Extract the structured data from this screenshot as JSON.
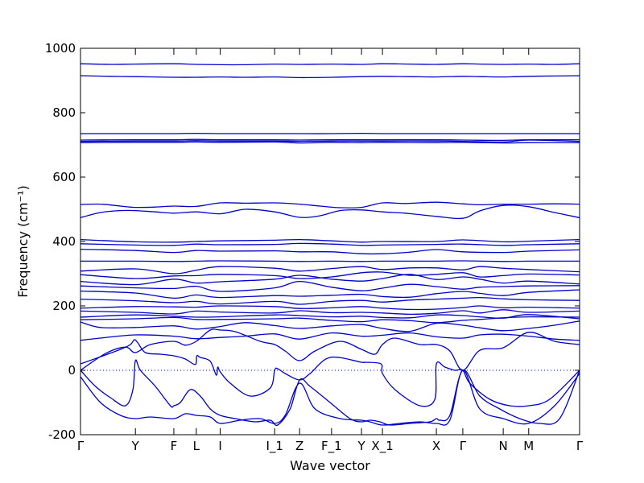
{
  "chart_data": {
    "type": "line",
    "xlabel": "Wave vector",
    "ylabel": "Frequency (cm⁻¹)",
    "ylim": [
      -200,
      1000
    ],
    "yticks": [
      -200,
      0,
      200,
      400,
      600,
      800,
      1000
    ],
    "xlim": [
      0,
      100
    ],
    "high_symmetry_points": [
      {
        "label": "Γ",
        "x": 0
      },
      {
        "label": "Y",
        "x": 11
      },
      {
        "label": "F",
        "x": 18.7
      },
      {
        "label": "L",
        "x": 23.2
      },
      {
        "label": "I",
        "x": 28
      },
      {
        "label": "I_1",
        "x": 38.9
      },
      {
        "label": "Z",
        "x": 43.9
      },
      {
        "label": "F_1",
        "x": 50.3
      },
      {
        "label": "Y",
        "x": 56.3
      },
      {
        "label": "X_1",
        "x": 60.5
      },
      {
        "label": "X",
        "x": 71.3
      },
      {
        "label": "Γ",
        "x": 76.6
      },
      {
        "label": "N",
        "x": 84.7
      },
      {
        "label": "M",
        "x": 89.8
      },
      {
        "label": "Γ",
        "x": 100
      }
    ],
    "zero_line": 0,
    "series": [
      {
        "x": [
          0,
          6,
          11,
          18.7,
          23.2,
          28,
          33,
          38.9,
          43.9,
          50.3,
          56.3,
          60.5,
          66,
          71.3,
          76.6,
          80,
          84.7,
          89.8,
          95,
          100
        ],
        "y": [
          952,
          950,
          951,
          952,
          950,
          949,
          949,
          951,
          950,
          951,
          950,
          952,
          951,
          950,
          952,
          951,
          950,
          951,
          950,
          952
        ]
      },
      {
        "x": [
          0,
          6,
          11,
          18.7,
          23.2,
          28,
          33,
          38.9,
          43.9,
          50.3,
          56.3,
          60.5,
          66,
          71.3,
          76.6,
          80,
          84.7,
          89.8,
          95,
          100
        ],
        "y": [
          915,
          913,
          912,
          910,
          910,
          911,
          910,
          911,
          909,
          910,
          912,
          913,
          912,
          911,
          913,
          912,
          911,
          913,
          914,
          915
        ]
      },
      {
        "x": [
          0,
          11,
          18.7,
          23.2,
          28,
          38.9,
          43.9,
          50.3,
          56.3,
          60.5,
          71.3,
          76.6,
          84.7,
          89.8,
          100
        ],
        "y": [
          735,
          735,
          735,
          736,
          735,
          735,
          735,
          735,
          736,
          735,
          735,
          735,
          735,
          735,
          735
        ]
      },
      {
        "x": [
          0,
          11,
          18.7,
          23.2,
          28,
          38.9,
          43.9,
          50.3,
          56.3,
          60.5,
          71.3,
          76.6,
          84.7,
          89.8,
          100
        ],
        "y": [
          715,
          716,
          716,
          717,
          716,
          716,
          715,
          716,
          716,
          716,
          716,
          715,
          714,
          716,
          716
        ]
      },
      {
        "x": [
          0,
          11,
          18.7,
          23.2,
          28,
          38.9,
          43.9,
          50.3,
          56.3,
          60.5,
          71.3,
          76.6,
          84.7,
          89.8,
          100
        ],
        "y": [
          711,
          712,
          712,
          713,
          712,
          712,
          711,
          712,
          712,
          712,
          712,
          711,
          709,
          715,
          711
        ]
      },
      {
        "x": [
          0,
          11,
          18.7,
          23.2,
          28,
          38.9,
          43.9,
          50.3,
          56.3,
          60.5,
          71.3,
          76.6,
          84.7,
          89.8,
          100
        ],
        "y": [
          707,
          708,
          708,
          709,
          708,
          709,
          706,
          708,
          707,
          708,
          707,
          708,
          706,
          707,
          707
        ]
      },
      {
        "x": [
          0,
          4,
          8,
          11,
          15,
          18.7,
          23.2,
          28,
          33,
          38.9,
          43.9,
          48,
          52,
          56.3,
          60.5,
          65,
          71.3,
          76.6,
          80,
          84.7,
          89.8,
          95,
          100
        ],
        "y": [
          515,
          516,
          510,
          506,
          507,
          510,
          509,
          520,
          519,
          520,
          516,
          510,
          505,
          506,
          520,
          518,
          522,
          517,
          514,
          516,
          516,
          517,
          516
        ]
      },
      {
        "x": [
          0,
          4,
          8,
          11,
          15,
          18.7,
          23.2,
          28,
          33,
          38.9,
          43.9,
          48,
          52,
          56.3,
          60.5,
          65,
          71.3,
          76.6,
          80,
          84.7,
          89.8,
          95,
          100
        ],
        "y": [
          474,
          490,
          496,
          496,
          492,
          488,
          492,
          486,
          500,
          492,
          475,
          480,
          496,
          498,
          492,
          488,
          478,
          472,
          495,
          512,
          508,
          490,
          474
        ]
      },
      {
        "x": [
          0,
          11,
          18.7,
          23.2,
          28,
          38.9,
          43.9,
          50.3,
          56.3,
          60.5,
          71.3,
          76.6,
          84.7,
          89.8,
          100
        ],
        "y": [
          406,
          399,
          398,
          400,
          402,
          404,
          406,
          402,
          398,
          400,
          400,
          405,
          399,
          401,
          406
        ]
      },
      {
        "x": [
          0,
          11,
          18.7,
          23.2,
          28,
          38.9,
          43.9,
          50.3,
          56.3,
          60.5,
          71.3,
          76.6,
          84.7,
          89.8,
          100
        ],
        "y": [
          393,
          389,
          388,
          392,
          390,
          391,
          394,
          392,
          388,
          389,
          391,
          392,
          388,
          390,
          393
        ]
      },
      {
        "x": [
          0,
          11,
          18.7,
          23.2,
          28,
          38.9,
          43.9,
          50.3,
          56.3,
          60.5,
          66,
          71.3,
          76.6,
          84.7,
          89.8,
          100
        ],
        "y": [
          376,
          372,
          366,
          372,
          370,
          371,
          368,
          368,
          362,
          362,
          367,
          375,
          368,
          366,
          370,
          374
        ]
      },
      {
        "x": [
          0,
          11,
          18.7,
          23.2,
          28,
          38.9,
          43.9,
          50.3,
          56.3,
          60.5,
          71.3,
          76.6,
          84.7,
          89.8,
          100
        ],
        "y": [
          339,
          339,
          338,
          339,
          340,
          339,
          338,
          339,
          338,
          339,
          339,
          340,
          338,
          339,
          339
        ]
      },
      {
        "x": [
          0,
          11,
          18.7,
          23.2,
          28,
          38.9,
          43.9,
          50.3,
          56.3,
          60.5,
          66,
          71.3,
          76.6,
          80,
          84.7,
          89.8,
          100
        ],
        "y": [
          308,
          315,
          300,
          311,
          322,
          317,
          308,
          316,
          322,
          313,
          318,
          318,
          312,
          322,
          317,
          313,
          306
        ]
      },
      {
        "x": [
          0,
          11,
          18.7,
          23.2,
          28,
          38.9,
          43.9,
          50.3,
          56.3,
          60.5,
          66,
          71.3,
          76.6,
          80,
          84.7,
          89.8,
          100
        ],
        "y": [
          297,
          285,
          293,
          294,
          298,
          294,
          285,
          290,
          303,
          305,
          295,
          298,
          303,
          290,
          294,
          299,
          296
        ]
      },
      {
        "x": [
          0,
          11,
          18.7,
          23.2,
          28,
          38.9,
          43.9,
          50.3,
          56.3,
          60.5,
          66,
          71.3,
          76.6,
          80,
          84.7,
          89.8,
          100
        ],
        "y": [
          276,
          266,
          283,
          271,
          275,
          283,
          295,
          283,
          277,
          285,
          298,
          282,
          290,
          283,
          271,
          277,
          268
        ]
      },
      {
        "x": [
          0,
          11,
          18.7,
          23.2,
          28,
          38.9,
          43.9,
          50.3,
          56.3,
          60.5,
          66,
          71.3,
          76.6,
          80,
          84.7,
          89.8,
          100
        ],
        "y": [
          262,
          256,
          254,
          261,
          245,
          256,
          276,
          258,
          247,
          255,
          267,
          260,
          252,
          258,
          260,
          262,
          263
        ]
      },
      {
        "x": [
          0,
          11,
          18.7,
          23.2,
          28,
          38.9,
          43.9,
          50.3,
          56.3,
          60.5,
          66,
          71.3,
          76.6,
          80,
          84.7,
          89.8,
          100
        ],
        "y": [
          246,
          240,
          224,
          234,
          226,
          232,
          230,
          233,
          236,
          229,
          227,
          238,
          245,
          239,
          232,
          242,
          250
        ]
      },
      {
        "x": [
          0,
          11,
          18.7,
          23.2,
          28,
          38.9,
          43.9,
          50.3,
          56.3,
          60.5,
          66,
          71.3,
          76.6,
          80,
          84.7,
          89.8,
          100
        ],
        "y": [
          221,
          216,
          210,
          214,
          206,
          214,
          205,
          214,
          217,
          212,
          218,
          221,
          224,
          226,
          222,
          219,
          217
        ]
      },
      {
        "x": [
          0,
          11,
          18.7,
          23.2,
          28,
          38.9,
          43.9,
          50.3,
          56.3,
          60.5,
          66,
          71.3,
          76.6,
          80,
          84.7,
          89.8,
          100
        ],
        "y": [
          193,
          198,
          197,
          196,
          200,
          198,
          192,
          194,
          198,
          193,
          189,
          190,
          195,
          200,
          194,
          196,
          193
        ]
      },
      {
        "x": [
          0,
          11,
          18.7,
          23.2,
          28,
          38.9,
          43.9,
          50.3,
          56.3,
          60.5,
          66,
          71.3,
          76.6,
          80,
          84.7,
          89.8,
          100
        ],
        "y": [
          184,
          180,
          175,
          184,
          181,
          178,
          185,
          179,
          180,
          178,
          174,
          177,
          185,
          178,
          188,
          180,
          184
        ]
      },
      {
        "x": [
          0,
          11,
          18.7,
          23.2,
          28,
          38.9,
          43.9,
          50.3,
          56.3,
          60.5,
          66,
          71.3,
          76.6,
          80,
          84.7,
          89.8,
          100
        ],
        "y": [
          165,
          172,
          168,
          165,
          166,
          172,
          170,
          166,
          168,
          164,
          163,
          172,
          170,
          166,
          162,
          173,
          160
        ]
      },
      {
        "x": [
          0,
          11,
          18.7,
          23.2,
          28,
          38.9,
          43.9,
          50.3,
          56.3,
          60.5,
          66,
          71.3,
          76.6,
          80,
          84.7,
          89.8,
          100
        ],
        "y": [
          157,
          160,
          164,
          158,
          158,
          160,
          162,
          155,
          151,
          157,
          154,
          148,
          155,
          158,
          163,
          166,
          165
        ]
      },
      {
        "x": [
          0,
          4,
          11,
          18.7,
          23.2,
          28,
          33,
          38.9,
          43.9,
          50.3,
          56.3,
          60.5,
          66,
          71.3,
          76.6,
          80,
          84.7,
          89.8,
          95,
          100
        ],
        "y": [
          150,
          133,
          133,
          138,
          128,
          136,
          148,
          139,
          130,
          138,
          142,
          130,
          121,
          146,
          140,
          132,
          123,
          130,
          140,
          153
        ]
      },
      {
        "x": [
          0,
          4,
          11,
          18.7,
          23.2,
          28,
          33,
          38.9,
          43.9,
          50.3,
          56.3,
          60.5,
          66,
          71.3,
          76.6,
          80,
          84.7,
          89.8,
          95,
          100
        ],
        "y": [
          93,
          100,
          110,
          106,
          98,
          102,
          106,
          113,
          97,
          116,
          106,
          109,
          116,
          104,
          100,
          110,
          112,
          106,
          97,
          93
        ]
      },
      {
        "x": [
          0,
          5,
          9,
          11,
          14,
          18.7,
          21,
          23.2,
          26,
          28,
          31,
          36,
          38.9,
          41,
          43.9,
          47,
          52,
          56.3,
          59,
          60.5,
          63,
          68,
          71.3,
          74,
          76.6,
          80,
          84.7,
          89.8,
          95,
          100
        ],
        "y": [
          0,
          52,
          72,
          55,
          80,
          90,
          78,
          90,
          125,
          125,
          120,
          90,
          80,
          60,
          30,
          60,
          90,
          65,
          50,
          80,
          100,
          80,
          80,
          60,
          0,
          62,
          70,
          118,
          90,
          80
        ]
      },
      {
        "x": [
          0,
          4,
          8,
          10,
          10.8,
          11.5,
          13,
          16,
          18.7,
          21,
          23,
          23.3,
          24,
          26,
          27.2,
          27.5,
          28,
          30,
          34,
          38,
          38.9,
          39.5,
          41,
          43.9,
          46,
          50,
          56.3,
          57,
          60.2,
          60.5,
          63,
          68,
          71,
          71.3,
          73,
          75,
          76.6,
          78,
          82,
          86,
          89.8,
          94,
          100
        ],
        "y": [
          20,
          42,
          65,
          80,
          95,
          85,
          55,
          50,
          45,
          35,
          18,
          45,
          40,
          28,
          -15,
          10,
          -5,
          -40,
          -80,
          -55,
          0,
          5,
          -10,
          -30,
          -10,
          40,
          25,
          25,
          20,
          -10,
          -60,
          -110,
          -90,
          20,
          10,
          0,
          0,
          -40,
          -90,
          -110,
          -110,
          -90,
          0
        ]
      },
      {
        "x": [
          0,
          3,
          6,
          9,
          10.5,
          11,
          12,
          15,
          18,
          18.7,
          20,
          22,
          24,
          26,
          28,
          31,
          35,
          38,
          39.5,
          42,
          43.9,
          46,
          50,
          54,
          56.3,
          58,
          60,
          62,
          66,
          70,
          71.3,
          72,
          74,
          76.6,
          80,
          84,
          88,
          92,
          96,
          100
        ],
        "y": [
          0,
          -50,
          -85,
          -110,
          -60,
          30,
          0,
          -50,
          -110,
          -110,
          -100,
          -60,
          -80,
          -120,
          -140,
          -150,
          -160,
          -155,
          -170,
          -120,
          -30,
          -50,
          -100,
          -150,
          -160,
          -155,
          -160,
          -170,
          -165,
          -160,
          -150,
          -155,
          -140,
          0,
          -80,
          -120,
          -150,
          -165,
          -150,
          0
        ]
      },
      {
        "x": [
          0,
          4,
          8,
          11,
          14,
          18.7,
          21,
          23.2,
          26,
          28,
          32,
          36,
          38.9,
          41,
          43.9,
          47,
          52,
          56.3,
          58,
          60.5,
          64,
          68,
          71.3,
          74,
          76.6,
          80,
          84.7,
          89.8,
          95,
          100
        ],
        "y": [
          -20,
          -100,
          -140,
          -150,
          -145,
          -150,
          -135,
          -140,
          -145,
          -165,
          -155,
          -150,
          -165,
          -140,
          -40,
          -120,
          -150,
          -155,
          -160,
          -170,
          -165,
          -160,
          -165,
          -155,
          0,
          -120,
          -150,
          -165,
          -110,
          -10
        ]
      }
    ]
  }
}
